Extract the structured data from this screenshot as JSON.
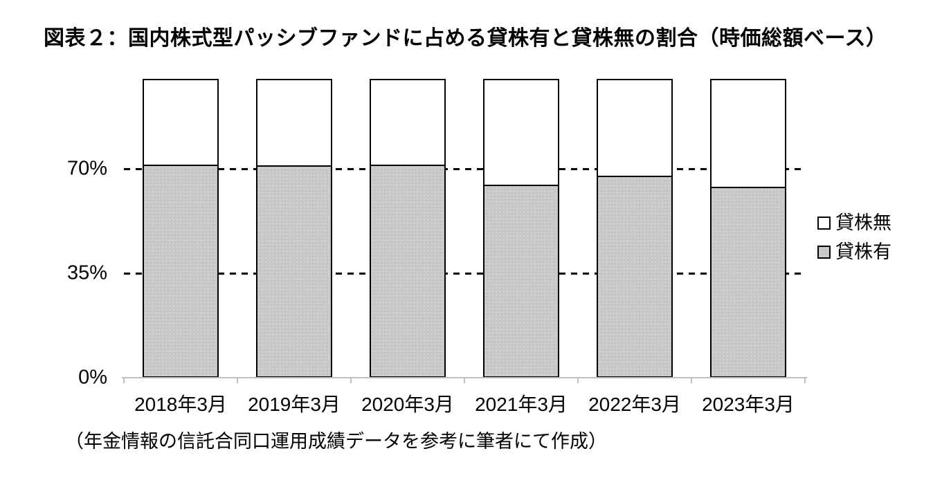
{
  "title": "図表２：国内株式型パッシブファンドに占める貸株有と貸株無の割合（時価総額ベース）",
  "footer": "（年金情報の信託合同口運用成績データを参考に筆者にて作成）",
  "colors": {
    "bar_with_lending": "#c6c6c6",
    "bar_without_lending": "#ffffff",
    "bar_border": "#000000",
    "gridline": "#000000",
    "axis_line": "#bfbfbf",
    "text": "#000000"
  },
  "chart_data": {
    "type": "bar",
    "stacked": true,
    "stacked_total": 100,
    "title": "図表２：国内株式型パッシブファンドに占める貸株有と貸株無の割合（時価総額ベース）",
    "categories": [
      "2018年3月",
      "2019年3月",
      "2020年3月",
      "2021年3月",
      "2022年3月",
      "2023年3月"
    ],
    "series": [
      {
        "name": "貸株有",
        "color": "#c6c6c6",
        "values": [
          71.4,
          71.2,
          71.4,
          64.8,
          67.7,
          64.0
        ]
      },
      {
        "name": "貸株無",
        "color": "#ffffff",
        "values": [
          28.6,
          28.8,
          28.6,
          35.2,
          32.3,
          36.0
        ]
      }
    ],
    "xlabel": "",
    "ylabel": "",
    "ylim": [
      0,
      100
    ],
    "yticks": [
      0,
      35,
      70
    ],
    "ytick_labels": [
      "0%",
      "35%",
      "70%"
    ],
    "grid": "horizontal-dashed-at-35-and-70",
    "legend_position": "right",
    "legend": [
      {
        "label": "貸株無",
        "color": "#ffffff"
      },
      {
        "label": "貸株有",
        "color": "#c6c6c6"
      }
    ],
    "source_note": "（年金情報の信託合同口運用成績データを参考に筆者にて作成）"
  }
}
